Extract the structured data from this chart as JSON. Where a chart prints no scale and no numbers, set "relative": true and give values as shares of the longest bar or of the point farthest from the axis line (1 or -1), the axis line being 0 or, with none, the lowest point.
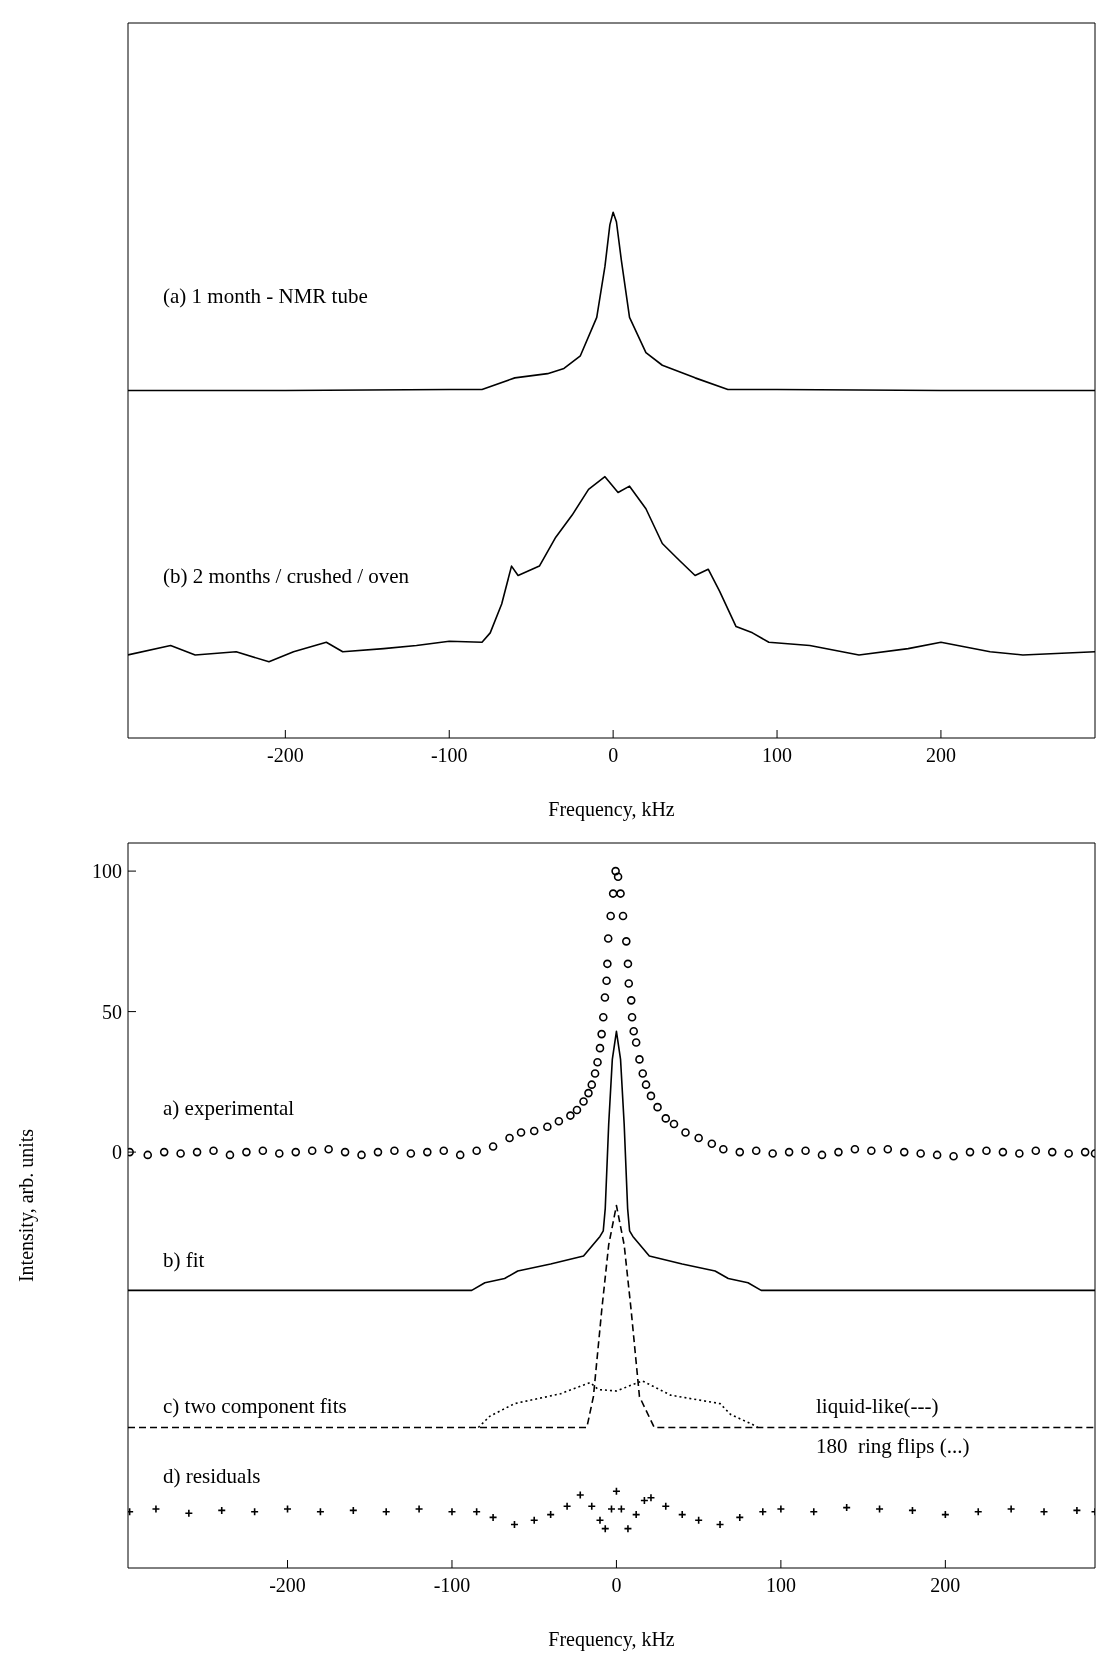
{
  "chart_data": [
    {
      "type": "line",
      "relative": true,
      "xlabel": "Frequency, kHz",
      "xlim": [
        -296,
        294
      ],
      "xticks": [
        -200,
        -100,
        0,
        100,
        200
      ],
      "tick_labels": "x",
      "grid": false,
      "legend": false,
      "marker": "none",
      "line_style": "solid",
      "annotations": [
        "(a) 1 month - NMR tube",
        "(b) 2 months / crushed / oven"
      ],
      "series": [
        {
          "color": "#000000",
          "x": [
            -296,
            -200,
            -100,
            -80,
            -60,
            -40,
            -30,
            -20,
            -10,
            -5,
            -2,
            0,
            2,
            5,
            10,
            20,
            30,
            50,
            70,
            100,
            200,
            294
          ],
          "values": [
            0.661,
            0.661,
            0.663,
            0.663,
            0.685,
            0.693,
            0.703,
            0.727,
            0.8,
            0.897,
            0.976,
            1.0,
            0.982,
            0.909,
            0.8,
            0.733,
            0.709,
            0.685,
            0.663,
            0.663,
            0.661,
            0.661
          ]
        },
        {
          "color": "#000000",
          "x": [
            -296,
            -270,
            -255,
            -230,
            -210,
            -195,
            -175,
            -165,
            -140,
            -120,
            -100,
            -80,
            -75,
            -68,
            -62,
            -58,
            -45,
            -35,
            -25,
            -15,
            -5,
            3,
            10,
            20,
            30,
            40,
            50,
            58,
            65,
            75,
            85,
            95,
            120,
            150,
            180,
            200,
            230,
            250,
            294
          ],
          "values": [
            0.158,
            0.176,
            0.158,
            0.164,
            0.145,
            0.164,
            0.182,
            0.164,
            0.17,
            0.176,
            0.184,
            0.182,
            0.2,
            0.255,
            0.327,
            0.309,
            0.327,
            0.382,
            0.424,
            0.473,
            0.497,
            0.467,
            0.479,
            0.436,
            0.37,
            0.339,
            0.309,
            0.321,
            0.279,
            0.212,
            0.2,
            0.182,
            0.176,
            0.158,
            0.17,
            0.182,
            0.164,
            0.158,
            0.164
          ]
        }
      ]
    },
    {
      "type": "line",
      "xlabel": "Frequency, kHz",
      "ylabel": "Intensity, arb. units",
      "xlim": [
        -297,
        291
      ],
      "xticks": [
        -200,
        -100,
        0,
        100,
        200
      ],
      "ylim": [
        -148,
        110
      ],
      "yticks": [
        0,
        50,
        100
      ],
      "grid": false,
      "legend": false,
      "annotations": [
        "a) experimental",
        "b) fit",
        "c) two component fits",
        "liquid-like(---)",
        "180  ring flips (...)",
        "d) residuals"
      ],
      "series": [
        {
          "type": "scatter",
          "marker": "circle",
          "color": "#000000",
          "x": [
            -296,
            -285,
            -275,
            -265,
            -255,
            -245,
            -235,
            -225,
            -215,
            -205,
            -195,
            -185,
            -175,
            -165,
            -155,
            -145,
            -135,
            -125,
            -115,
            -105,
            -95,
            -85,
            -75,
            -65,
            -58,
            -50,
            -42,
            -35,
            -28,
            -24,
            -20,
            -17,
            -15,
            -13,
            -11.5,
            -10,
            -9,
            -8,
            -7,
            -6,
            -5.5,
            -5,
            -3.5,
            -2,
            -0.5,
            1,
            2.5,
            4,
            6,
            7,
            7.5,
            9,
            9.5,
            10.5,
            12,
            14,
            16,
            18,
            21,
            25,
            30,
            35,
            42,
            50,
            58,
            65,
            75,
            85,
            95,
            105,
            115,
            125,
            135,
            145,
            155,
            165,
            175,
            185,
            195,
            205,
            215,
            225,
            235,
            245,
            255,
            265,
            275,
            285,
            291
          ],
          "values": [
            0,
            -1,
            0,
            -0.5,
            0,
            0.5,
            -1,
            0,
            0.5,
            -0.5,
            0,
            0.5,
            1,
            0,
            -1,
            0,
            0.5,
            -0.5,
            0,
            0.5,
            -1,
            0.5,
            2,
            5,
            7,
            7.5,
            9,
            11,
            13,
            15,
            18,
            21,
            24,
            28,
            32,
            37,
            42,
            48,
            55,
            61,
            67,
            76,
            84,
            92,
            100,
            98,
            92,
            84,
            75,
            67,
            60,
            54,
            48,
            43,
            39,
            33,
            28,
            24,
            20,
            16,
            12,
            10,
            7,
            5,
            3,
            1,
            0,
            0.5,
            -0.5,
            0,
            0.5,
            -1,
            0,
            1,
            0.5,
            1,
            0,
            -0.5,
            -1,
            -1.5,
            0,
            0.5,
            0,
            -0.5,
            0.5,
            0,
            -0.5,
            0,
            -0.5
          ]
        },
        {
          "type": "line",
          "line_style": "solid",
          "color": "#000000",
          "x": [
            -297,
            -88,
            -80,
            -68,
            -60,
            -40,
            -20,
            -10,
            -8,
            -6.8,
            -4.7,
            -2.5,
            0,
            2.5,
            4.7,
            6.8,
            8,
            10,
            20,
            40,
            60,
            68,
            80,
            88,
            291
          ],
          "values": [
            -49.2,
            -49.2,
            -46.5,
            -45,
            -42.3,
            -39.8,
            -37,
            -30,
            -28,
            -20,
            10,
            33,
            43,
            33,
            10,
            -20,
            -28,
            -30,
            -37,
            -39.8,
            -42.3,
            -45,
            -46.5,
            -49.2,
            -49.2
          ]
        },
        {
          "type": "line",
          "line_style": "dashed",
          "color": "#000000",
          "x": [
            -297,
            -18,
            -14,
            -8.9,
            -4.7,
            0,
            4.7,
            8.9,
            14,
            23,
            291
          ],
          "values": [
            -98,
            -98,
            -87,
            -56,
            -33,
            -19,
            -33,
            -56,
            -87,
            -98,
            -98
          ]
        },
        {
          "type": "line",
          "line_style": "dotted",
          "color": "#000000",
          "x": [
            -84,
            -77,
            -62,
            -34,
            -16,
            -11,
            0,
            15.7,
            33,
            63,
            69.5,
            82,
            86
          ],
          "values": [
            -98,
            -94,
            -89.5,
            -86,
            -82,
            -84.5,
            -85,
            -81.4,
            -86.5,
            -89.5,
            -93.4,
            -96.7,
            -98
          ]
        },
        {
          "type": "scatter",
          "marker": "cross",
          "color": "#000000",
          "x": [
            -296,
            -280,
            -260,
            -240,
            -220,
            -200,
            -180,
            -160,
            -140,
            -120,
            -100,
            -85,
            -75,
            -62,
            -50,
            -40,
            -30,
            -22,
            -15,
            -10,
            -6.8,
            -3,
            0,
            3,
            7,
            12,
            17,
            21,
            30,
            40,
            50,
            63,
            75,
            89,
            100,
            120,
            140,
            160,
            180,
            200,
            220,
            240,
            260,
            280,
            291
          ],
          "values": [
            -128,
            -127,
            -128.5,
            -127.5,
            -128,
            -127,
            -128,
            -127.5,
            -128,
            -127,
            -128,
            -128,
            -130,
            -132.5,
            -131,
            -129,
            -126,
            -122,
            -126,
            -131,
            -134,
            -127,
            -120.7,
            -127,
            -134,
            -129,
            -124,
            -123,
            -126,
            -129,
            -131,
            -132.5,
            -130,
            -128,
            -127,
            -128,
            -126.5,
            -127,
            -127.5,
            -129,
            -128,
            -127,
            -128,
            -127.5,
            -128
          ]
        }
      ]
    }
  ]
}
